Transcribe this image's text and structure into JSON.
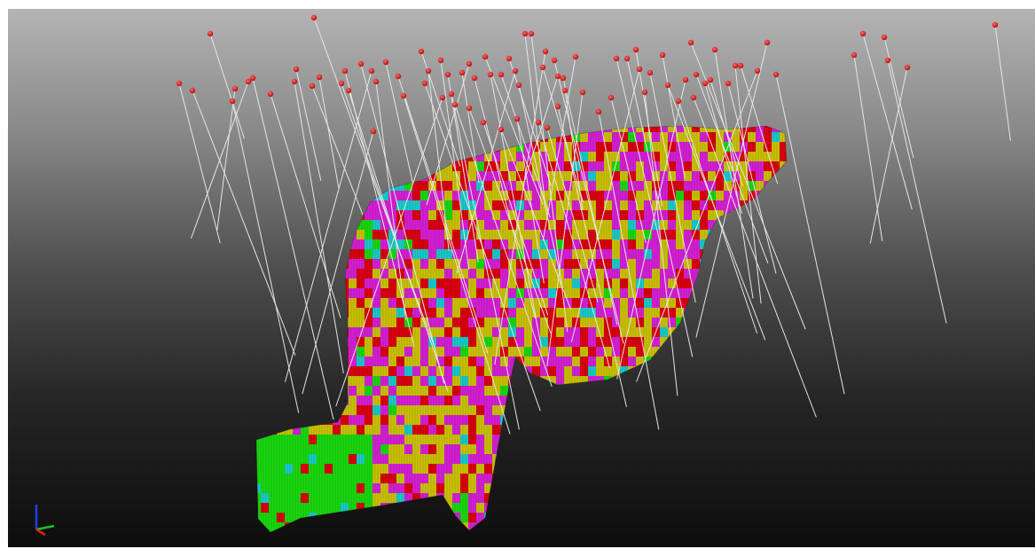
{
  "viewer": {
    "background_top": "#b4b4b4",
    "background_bottom": "#0d0d0d"
  },
  "scene": {
    "object": "voxel-block-model",
    "legend_colors": {
      "magenta": "#d31fd3",
      "yellow": "#c8c000",
      "red": "#d8000e",
      "green": "#19d60f",
      "cyan": "#19c9c9"
    },
    "drillhole_collar_color": "#e00000",
    "drillhole_trace_color": "#e6e6e6"
  },
  "axis_triad": {
    "x_color": "#e02020",
    "y_color": "#20c020",
    "z_color": "#2040e0"
  }
}
